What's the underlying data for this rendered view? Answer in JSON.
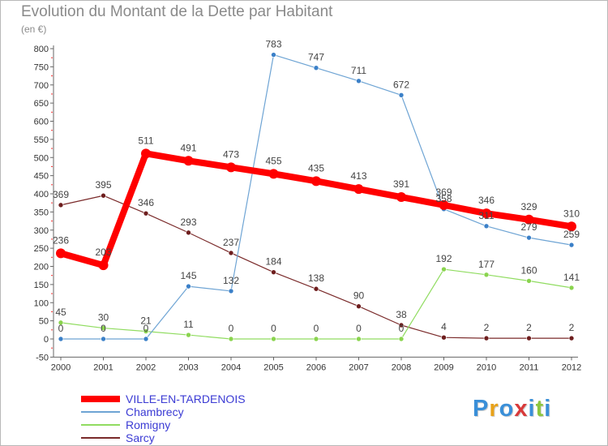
{
  "title": "Evolution du Montant de la Dette par Habitant",
  "subtitle": "(en €)",
  "brand": "Proxiti",
  "chart_data": {
    "type": "line",
    "title": "Evolution du Montant de la Dette par Habitant",
    "ylabel": "(en €)",
    "xlabel": "",
    "categories": [
      "2000",
      "2001",
      "2002",
      "2003",
      "2004",
      "2005",
      "2006",
      "2007",
      "2008",
      "2009",
      "2010",
      "2011",
      "2012"
    ],
    "ylim": [
      -50,
      800
    ],
    "yticks": [
      -50,
      0,
      50,
      100,
      150,
      200,
      250,
      300,
      350,
      400,
      450,
      500,
      550,
      600,
      650,
      700,
      750,
      800
    ],
    "grid": false,
    "legend_position": "bottom-left",
    "series": [
      {
        "name": "VILLE-EN-TARDENOIS",
        "color": "#ff0000",
        "values": [
          236,
          203,
          511,
          491,
          473,
          455,
          435,
          413,
          391,
          369,
          346,
          329,
          310
        ]
      },
      {
        "name": "Chambrecy",
        "color": "#6ea4d4",
        "values": [
          0,
          0,
          0,
          145,
          132,
          783,
          747,
          711,
          672,
          358,
          311,
          279,
          259
        ]
      },
      {
        "name": "Romigny",
        "color": "#90dc60",
        "values": [
          45,
          30,
          21,
          11,
          0,
          0,
          0,
          0,
          0,
          192,
          177,
          160,
          141
        ]
      },
      {
        "name": "Sarcy",
        "color": "#7a2a2a",
        "values": [
          369,
          395,
          346,
          293,
          237,
          184,
          138,
          90,
          38,
          4,
          2,
          2,
          2
        ]
      }
    ]
  }
}
